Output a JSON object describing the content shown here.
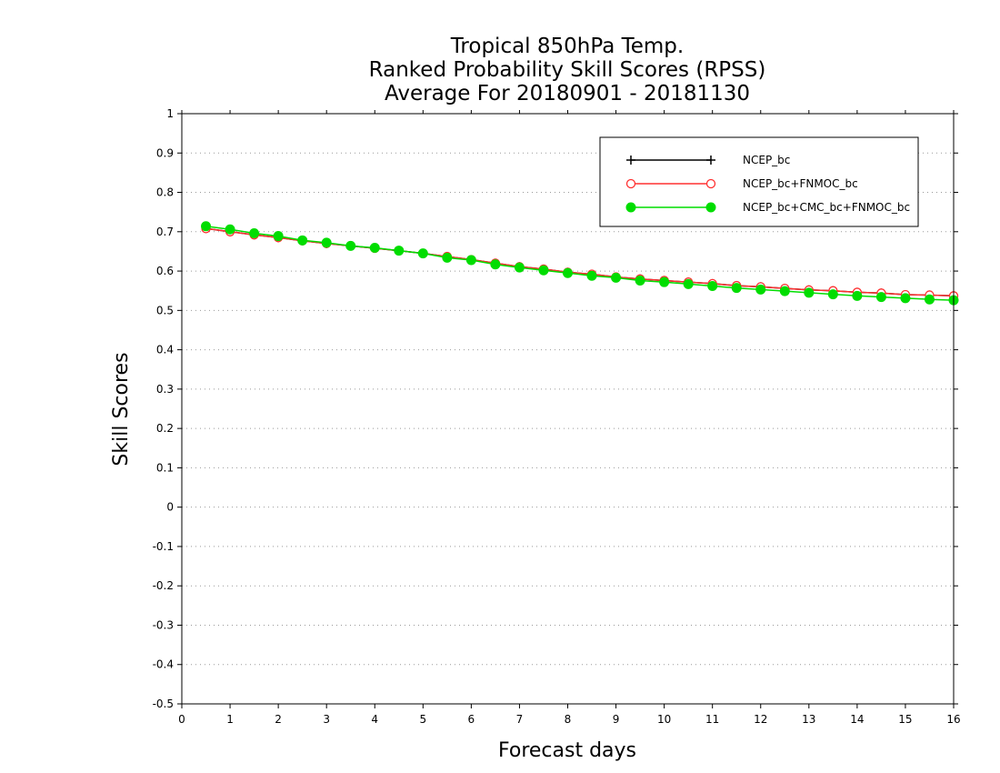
{
  "chart_data": {
    "type": "line",
    "title_lines": [
      "Tropical 850hPa Temp.",
      "Ranked Probability Skill Scores (RPSS)",
      "Average For 20180901 - 20181130"
    ],
    "xlabel": "Forecast days",
    "ylabel": "Skill Scores",
    "xlim": [
      0,
      16
    ],
    "ylim": [
      -0.5,
      1
    ],
    "x_ticks": [
      0,
      1,
      2,
      3,
      4,
      5,
      6,
      7,
      8,
      9,
      10,
      11,
      12,
      13,
      14,
      15,
      16
    ],
    "x_tick_labels": [
      "0",
      "1",
      "2",
      "3",
      "4",
      "5",
      "6",
      "7",
      "8",
      "9",
      "10",
      "11",
      "12",
      "13",
      "14",
      "15",
      "16"
    ],
    "y_ticks": [
      -0.5,
      -0.4,
      -0.3,
      -0.2,
      -0.1,
      0,
      0.1,
      0.2,
      0.3,
      0.4,
      0.5,
      0.6,
      0.7,
      0.8,
      0.9,
      1
    ],
    "y_tick_labels": [
      "-0.5",
      "-0.4",
      "-0.3",
      "-0.2",
      "-0.1",
      "0",
      "0.1",
      "0.2",
      "0.3",
      "0.4",
      "0.5",
      "0.6",
      "0.7",
      "0.8",
      "0.9",
      "1"
    ],
    "grid": "horizontal dotted",
    "legend_position": "top-right",
    "x": [
      0.5,
      1,
      1.5,
      2,
      2.5,
      3,
      3.5,
      4,
      4.5,
      5,
      5.5,
      6,
      6.5,
      7,
      7.5,
      8,
      8.5,
      9,
      9.5,
      10,
      10.5,
      11,
      11.5,
      12,
      12.5,
      13,
      13.5,
      14,
      14.5,
      15,
      15.5,
      16
    ],
    "series": [
      {
        "name": "NCEP_bc",
        "color": "#000000",
        "marker": "plus",
        "values": [
          0.708,
          0.7,
          0.692,
          0.685,
          0.677,
          0.67,
          0.664,
          0.658,
          0.652,
          0.645,
          0.637,
          0.629,
          0.62,
          0.611,
          0.605,
          0.597,
          0.592,
          0.585,
          0.58,
          0.576,
          0.572,
          0.568,
          0.563,
          0.56,
          0.556,
          0.552,
          0.55,
          0.546,
          0.544,
          0.54,
          0.539,
          0.537
        ]
      },
      {
        "name": "NCEP_bc+FNMOC_bc",
        "color": "#ff3030",
        "marker": "open-circle",
        "values": [
          0.708,
          0.7,
          0.692,
          0.685,
          0.677,
          0.67,
          0.664,
          0.658,
          0.652,
          0.645,
          0.637,
          0.629,
          0.62,
          0.611,
          0.605,
          0.597,
          0.592,
          0.585,
          0.58,
          0.576,
          0.572,
          0.568,
          0.563,
          0.56,
          0.556,
          0.552,
          0.55,
          0.546,
          0.544,
          0.54,
          0.539,
          0.537
        ]
      },
      {
        "name": "NCEP_bc+CMC_bc+FNMOC_bc",
        "color": "#00dd00",
        "marker": "filled-circle",
        "values": [
          0.714,
          0.706,
          0.696,
          0.689,
          0.678,
          0.672,
          0.664,
          0.659,
          0.652,
          0.645,
          0.634,
          0.628,
          0.617,
          0.609,
          0.602,
          0.595,
          0.588,
          0.583,
          0.576,
          0.572,
          0.567,
          0.562,
          0.557,
          0.553,
          0.549,
          0.545,
          0.541,
          0.537,
          0.534,
          0.531,
          0.528,
          0.526
        ]
      }
    ]
  }
}
